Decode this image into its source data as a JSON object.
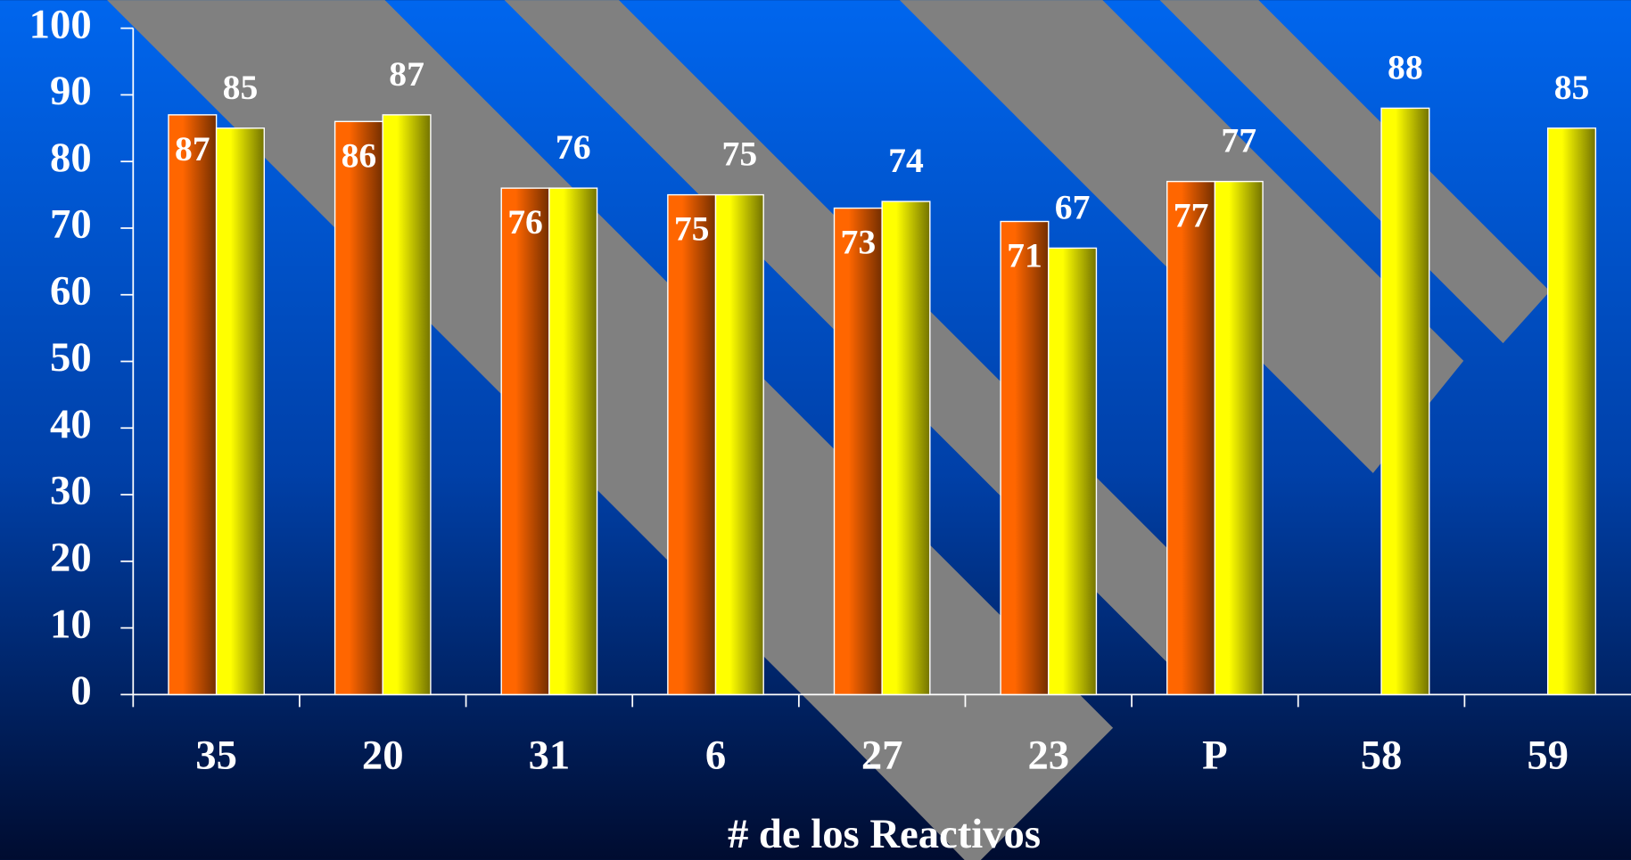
{
  "chart_data": {
    "type": "bar",
    "x_label": "# de los Reactivos",
    "categories": [
      "35",
      "20",
      "31",
      "6",
      "27",
      "23",
      "P",
      "58",
      "59"
    ],
    "series": [
      {
        "color": "#ff6600",
        "values": [
          87,
          86,
          76,
          75,
          73,
          71,
          77,
          null,
          null
        ]
      },
      {
        "color": "#ffff00",
        "values": [
          85,
          87,
          76,
          75,
          74,
          67,
          77,
          88,
          85
        ]
      }
    ],
    "ylim": [
      0,
      100
    ],
    "yticks": [
      0,
      10,
      20,
      30,
      40,
      50,
      60,
      70,
      80,
      90,
      100
    ]
  }
}
